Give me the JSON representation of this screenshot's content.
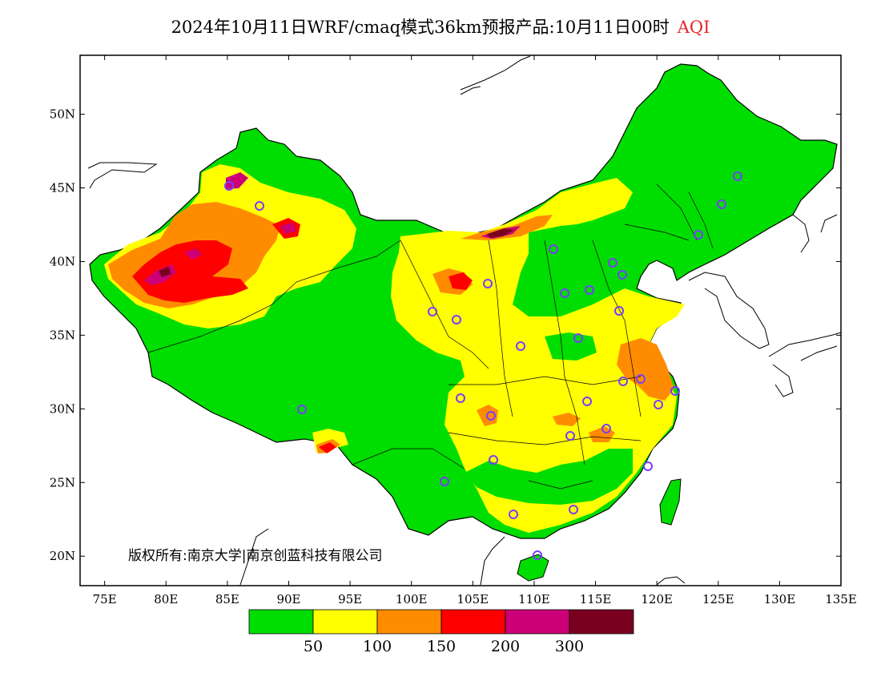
{
  "title": {
    "main": "2024年10月11日WRF/cmaq模式36km预报产品:10月11日00时",
    "variable": "AQI"
  },
  "copyright": "版权所有:南京大学|南京创蓝科技有限公司",
  "axes": {
    "lon_labels": [
      "75E",
      "80E",
      "85E",
      "90E",
      "95E",
      "100E",
      "105E",
      "110E",
      "115E",
      "120E",
      "125E",
      "130E",
      "135E"
    ],
    "lat_labels": [
      "50N",
      "45N",
      "40N",
      "35N",
      "30N",
      "25N",
      "20N"
    ],
    "lon_range": [
      73,
      135
    ],
    "lat_range": [
      18,
      54
    ]
  },
  "legend": {
    "colors": [
      "#00dd00",
      "#ffff00",
      "#ff8c00",
      "#ff0000",
      "#cc0077",
      "#7a0020"
    ],
    "thresholds": [
      "50",
      "100",
      "150",
      "200",
      "300"
    ]
  },
  "colors": {
    "good": "#00dd00",
    "moderate": "#ffff00",
    "usg": "#ff8c00",
    "unhealthy": "#ff0000",
    "very_unhealthy": "#cc0077",
    "hazardous": "#7a0020",
    "station_marker": "#7a3cff",
    "title_accent": "#e8262a"
  }
}
